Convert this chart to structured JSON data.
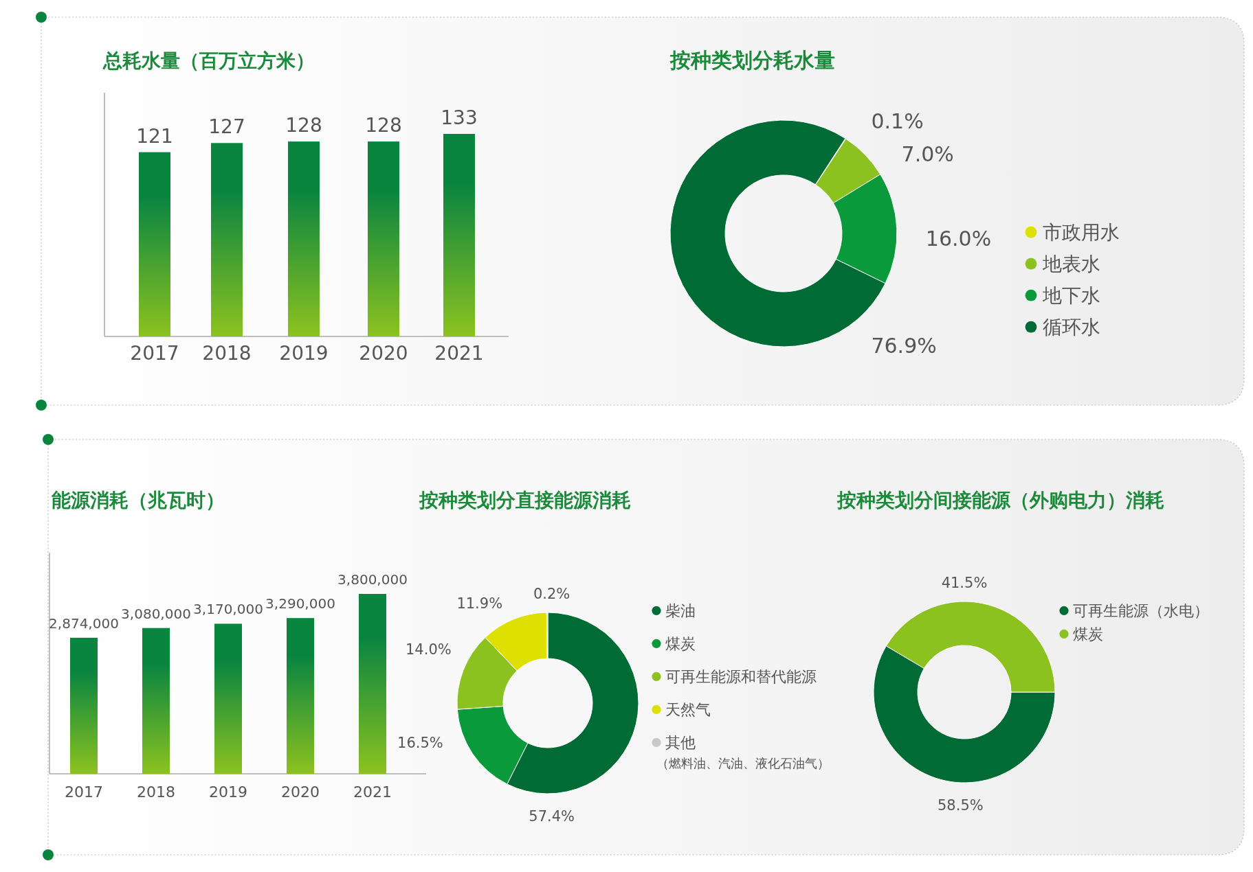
{
  "chart_data": [
    {
      "type": "bar",
      "title": "总耗水量（百万立方米）",
      "categories": [
        "2017",
        "2018",
        "2019",
        "2020",
        "2021"
      ],
      "values": [
        121,
        127,
        128,
        128,
        133
      ],
      "color": "#0a8540",
      "data_labels": true
    },
    {
      "type": "donut",
      "title": "按种类划分耗水量",
      "categories": [
        "市政用水",
        "地表水",
        "地下水",
        "循环水"
      ],
      "values": [
        0.1,
        7.0,
        16.0,
        76.9
      ],
      "colors": [
        "#dde000",
        "#8cc21f",
        "#0a9a3c",
        "#006b35"
      ],
      "value_labels": [
        "0.1%",
        "7.0%",
        "16.0%",
        "76.9%"
      ],
      "legend": "right"
    },
    {
      "type": "bar",
      "title": "能源消耗（兆瓦时）",
      "categories": [
        "2017",
        "2018",
        "2019",
        "2020",
        "2021"
      ],
      "values": [
        2874000,
        3080000,
        3170000,
        3290000,
        3800000
      ],
      "value_labels": [
        "2,874,000",
        "3,080,000",
        "3,170,000",
        "3,290,000",
        "3,800,000"
      ],
      "color": "#0a8540"
    },
    {
      "type": "donut",
      "title": "按种类划分直接能源消耗",
      "categories": [
        "柴油",
        "煤炭",
        "可再生能源和替代能源",
        "天然气",
        "其他（燃料油、汽油、液化石油气）"
      ],
      "values": [
        57.4,
        16.5,
        14.0,
        11.9,
        0.2
      ],
      "colors": [
        "#006b35",
        "#0a9a3c",
        "#8cc21f",
        "#dde000",
        "#c8c8c8"
      ],
      "value_labels": [
        "57.4%",
        "16.5%",
        "14.0%",
        "11.9%",
        "0.2%"
      ],
      "legend": "right"
    },
    {
      "type": "donut",
      "title": "按种类划分间接能源（外购电力）消耗",
      "categories": [
        "可再生能源（水电）",
        "煤炭"
      ],
      "values": [
        58.5,
        41.5
      ],
      "colors": [
        "#006b35",
        "#8cc21f"
      ],
      "value_labels": [
        "58.5%",
        "41.5%"
      ],
      "legend": "right"
    }
  ]
}
